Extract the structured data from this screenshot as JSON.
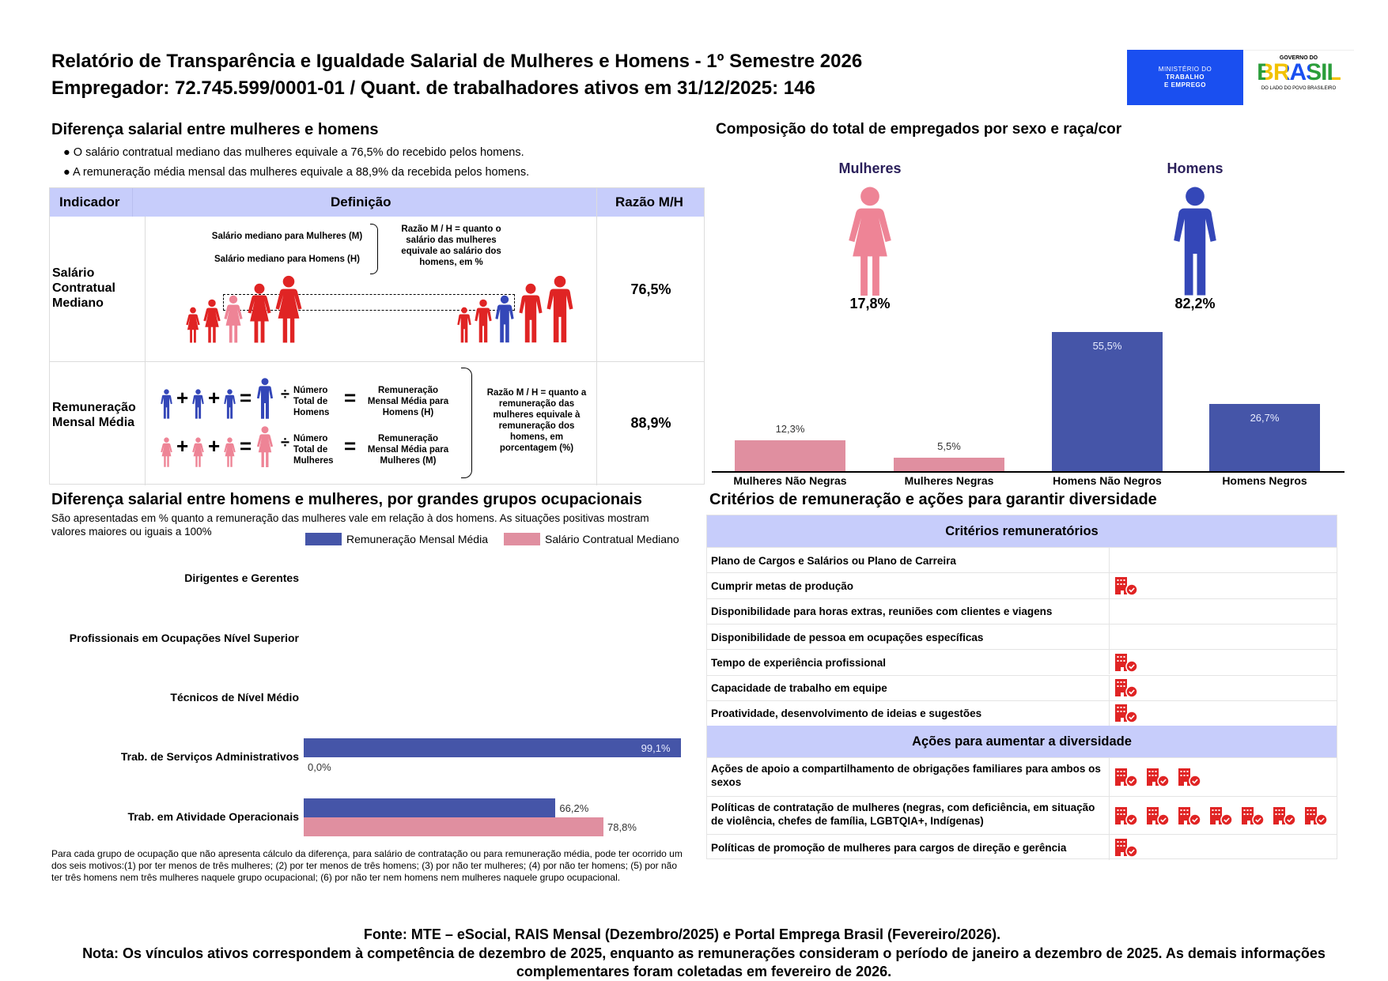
{
  "header": {
    "title": "Relatório de Transparência e Igualdade Salarial de Mulheres e Homens - 1º Semestre 2026",
    "subtitle": "Empregador: 72.745.599/0001-01 / Quant. de trabalhadores ativos em 31/12/2025: 146",
    "logo_ministry": [
      "MINISTÉRIO DO",
      "TRABALHO",
      "E EMPREGO"
    ],
    "logo_gov": {
      "top": "GOVERNO DO",
      "main": "BRASIL",
      "bottom": "DO LADO DO POVO BRASILEIRO"
    }
  },
  "wage_gap": {
    "heading": "Diferença salarial entre mulheres e homens",
    "bullets": [
      "● O salário contratual mediano das mulheres equivale a 76,5% do recebido pelos homens.",
      "● A remuneração média mensal das mulheres equivale a 88,9% da recebida pelos homens."
    ],
    "table": {
      "headers": [
        "Indicador",
        "Definição",
        "Razão M/H"
      ],
      "row1": {
        "indicator": "Salário Contratual Mediano",
        "def_women": "Salário mediano para Mulheres (M)",
        "def_men": "Salário mediano para Homens (H)",
        "def_ratio": "Razão M / H = quanto o salário das mulheres equivale ao salário dos homens, em %",
        "value": "76,5%"
      },
      "row2": {
        "indicator": "Remuneração Mensal Média",
        "plus": "+",
        "equals": "=",
        "divide": "÷",
        "men_count": "Número Total de Homens",
        "men_result": "Remuneração Mensal Média para Homens (H)",
        "women_count": "Número Total de Mulheres",
        "women_result": "Remuneração Mensal Média para Mulheres (M)",
        "def_ratio": "Razão M / H = quanto a remuneração das mulheres equivale à remuneração dos homens, em porcentagem (%)",
        "value": "88,9%"
      }
    }
  },
  "composition": {
    "heading": "Composição do total de empregados por sexo e raça/cor",
    "women_label": "Mulheres",
    "women_pct": "17,8%",
    "men_label": "Homens",
    "men_pct": "82,2%"
  },
  "colors": {
    "women": "#e08fa0",
    "men": "#4555a8",
    "women_icon": "#ee8496",
    "men_icon": "#3447b8",
    "header_bg": "#c7cdfb",
    "red": "#e02424"
  },
  "chart_data": [
    {
      "type": "bar",
      "categories": [
        "Mulheres Não Negras",
        "Mulheres Negras",
        "Homens Não Negros",
        "Homens Negros"
      ],
      "values": [
        12.3,
        5.5,
        55.5,
        26.7
      ],
      "labels": [
        "12,3%",
        "5,5%",
        "55,5%",
        "26,7%"
      ],
      "colors": [
        "#e08fa0",
        "#e08fa0",
        "#4555a8",
        "#4555a8"
      ],
      "title": "",
      "xlabel": "",
      "ylabel": "",
      "grid": false
    },
    {
      "type": "bar",
      "orientation": "horizontal",
      "title": "Diferença salarial entre homens e mulheres, por grandes grupos ocupacionais",
      "subtitle": "São apresentadas em % quanto a remuneração das mulheres vale em relação à dos homens. As situações positivas mostram valores maiores ou iguais a 100%",
      "legend_position": "top-right",
      "categories": [
        "Dirigentes e Gerentes",
        "Profissionais em Ocupações Nível Superior",
        "Técnicos de Nível Médio",
        "Trab. de Serviços Administrativos",
        "Trab. em Atividade Operacionais"
      ],
      "series": [
        {
          "name": "Remuneração Mensal Média",
          "color": "#4555a8",
          "values": [
            null,
            null,
            null,
            99.1,
            66.2
          ],
          "labels": [
            "",
            "",
            "",
            "99,1%",
            "66,2%"
          ]
        },
        {
          "name": "Salário Contratual Mediano",
          "color": "#e08fa0",
          "values": [
            null,
            null,
            null,
            0.0,
            78.8
          ],
          "labels": [
            "",
            "",
            "",
            "0,0%",
            "78,8%"
          ]
        }
      ],
      "footnote": "Para cada grupo de ocupação que não apresenta cálculo da diferença, para salário de contratação ou para remuneração média, pode ter ocorrido um dos seis motivos:(1) por ter menos de três mulheres; (2) por ter menos de três homens; (3) por não ter mulheres; (4) por não ter homens; (5) por não ter três homens nem três mulheres naquele grupo ocupacional; (6) por não ter nem homens nem mulheres naquele grupo ocupacional."
    }
  ],
  "criteria": {
    "heading": "Critérios de remuneração e ações para garantir diversidade",
    "section1_title": "Critérios remuneratórios",
    "section1_rows": [
      {
        "label": "Plano de Cargos e Salários ou Plano de Carreira",
        "icons": 0
      },
      {
        "label": "Cumprir metas de produção",
        "icons": 1
      },
      {
        "label": "Disponibilidade para horas extras, reuniões com clientes e viagens",
        "icons": 0
      },
      {
        "label": "Disponibilidade de pessoa em ocupações específicas",
        "icons": 0
      },
      {
        "label": "Tempo de experiência profissional",
        "icons": 1
      },
      {
        "label": "Capacidade de trabalho em equipe",
        "icons": 1
      },
      {
        "label": "Proatividade, desenvolvimento de ideias e sugestões",
        "icons": 1
      }
    ],
    "section2_title": "Ações para aumentar a diversidade",
    "section2_rows": [
      {
        "label": "Ações de apoio a compartilhamento de obrigações familiares para ambos os sexos",
        "icons": 3
      },
      {
        "label": "Políticas de contratação de mulheres (negras, com deficiência, em situação de violência, chefes de família, LGBTQIA+, Indígenas)",
        "icons": 7
      },
      {
        "label": "Políticas de promoção de mulheres para cargos de direção e gerência",
        "icons": 1
      }
    ],
    "icon": "building-check-icon"
  },
  "footer": {
    "source": "Fonte: MTE – eSocial, RAIS Mensal (Dezembro/2025) e Portal Emprega Brasil (Fevereiro/2026).",
    "note": "Nota: Os vínculos ativos correspondem à competência de dezembro de 2025, enquanto as remunerações consideram o período de janeiro a dezembro de 2025. As demais informações complementares foram coletadas em fevereiro de 2026."
  }
}
